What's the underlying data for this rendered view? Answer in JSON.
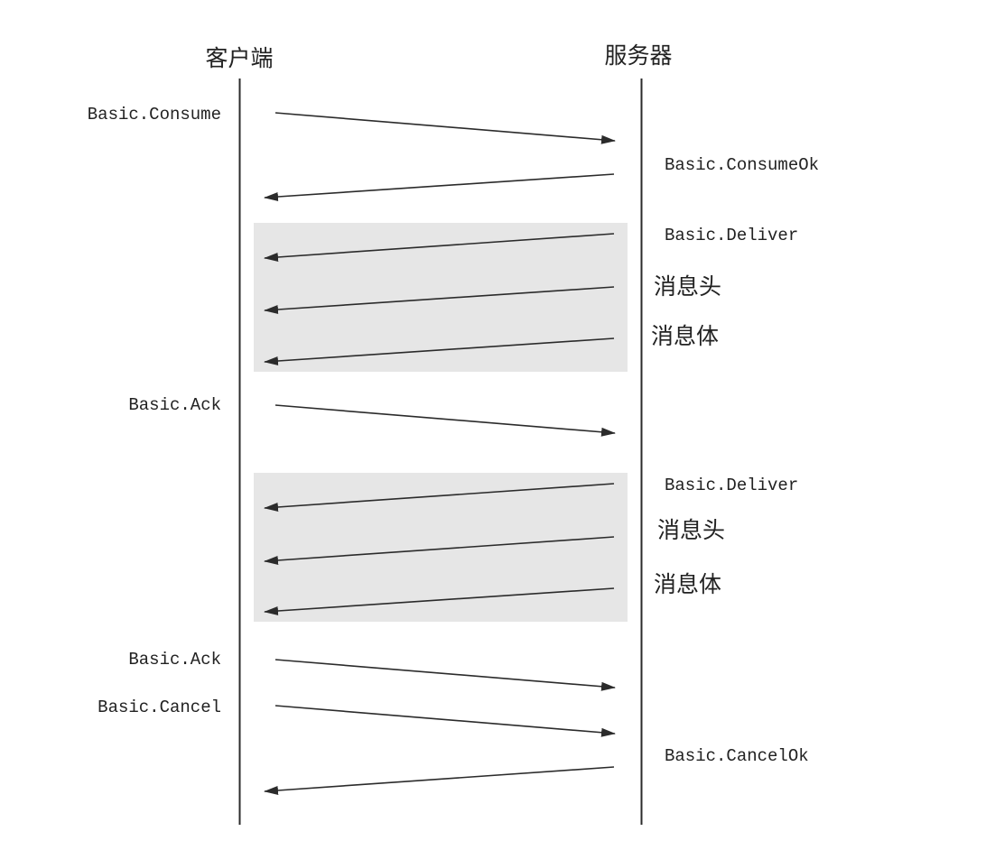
{
  "participants": {
    "client": "客户端",
    "server": "服务器"
  },
  "colors": {
    "line": "#2b2b2b",
    "text": "#222222",
    "group_fill": "#e6e6e6",
    "background": "#ffffff"
  },
  "messages": [
    {
      "id": "consume",
      "label": "Basic.Consume",
      "direction": "client-to-server"
    },
    {
      "id": "consume-ok",
      "label": "Basic.ConsumeOk",
      "direction": "server-to-client"
    },
    {
      "id": "deliver-1",
      "label": "Basic.Deliver",
      "direction": "server-to-client"
    },
    {
      "id": "header-1",
      "label": "消息头",
      "direction": "server-to-client"
    },
    {
      "id": "body-1",
      "label": "消息体",
      "direction": "server-to-client"
    },
    {
      "id": "ack-1",
      "label": "Basic.Ack",
      "direction": "client-to-server"
    },
    {
      "id": "deliver-2",
      "label": "Basic.Deliver",
      "direction": "server-to-client"
    },
    {
      "id": "header-2",
      "label": "消息头",
      "direction": "server-to-client"
    },
    {
      "id": "body-2",
      "label": "消息体",
      "direction": "server-to-client"
    },
    {
      "id": "ack-2",
      "label": "Basic.Ack",
      "direction": "client-to-server"
    },
    {
      "id": "cancel",
      "label": "Basic.Cancel",
      "direction": "client-to-server"
    },
    {
      "id": "cancel-ok",
      "label": "Basic.CancelOk",
      "direction": "server-to-client"
    }
  ]
}
